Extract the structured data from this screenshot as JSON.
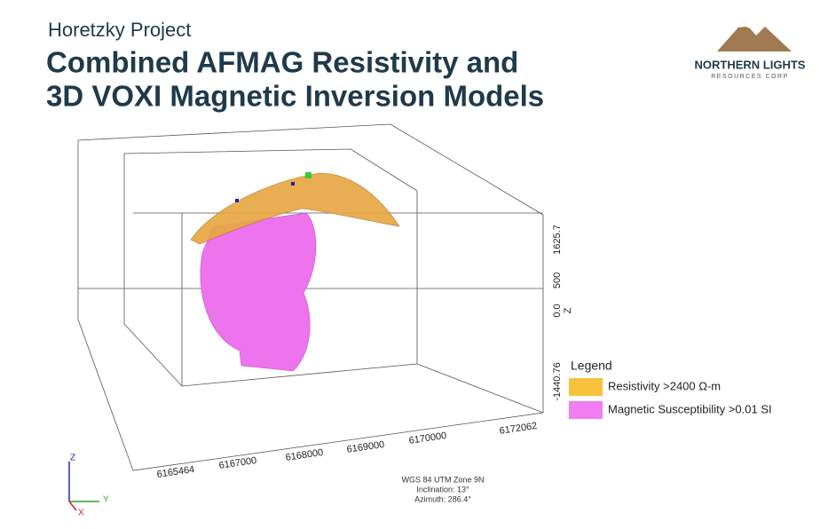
{
  "header": {
    "subtitle": "Horetzky Project",
    "title_lines": [
      "Combined AFMAG Resistivity and",
      "3D VOXI Magnetic Inversion Models"
    ]
  },
  "logo": {
    "name": "NORTHERN LIGHTS",
    "tagline": "RESOURCES CORP"
  },
  "z_axis": {
    "labels": [
      "1625.7",
      "500",
      "0.0",
      "Z",
      "-1440.76"
    ]
  },
  "y_axis": {
    "labels": [
      "6165464",
      "6167000",
      "6168000",
      "6169000",
      "6170000",
      "6172062"
    ]
  },
  "view_info": [
    "WGS 84 UTM Zone 9N",
    "Inclination: 13°",
    "Azimuth: 286.4°"
  ],
  "legend": {
    "title": "Legend",
    "items": [
      {
        "label": "Resistivity >2400 Ω-m",
        "color": "#f9c23c"
      },
      {
        "label": "Magnetic Susceptibility >0.01 SI",
        "color": "#f07ef0"
      }
    ]
  },
  "triad": {
    "z": "Z",
    "y": "Y",
    "x": "X"
  }
}
